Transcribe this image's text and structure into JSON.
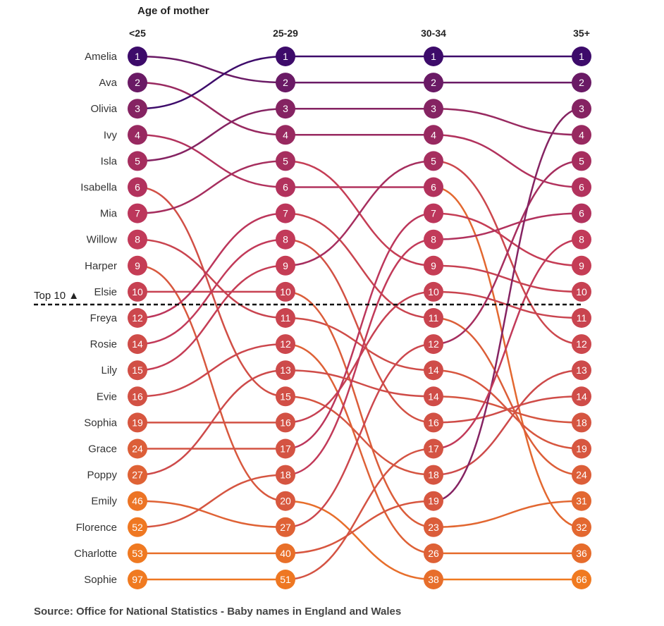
{
  "chart_data": {
    "type": "bump",
    "title": "Age of mother",
    "columns": [
      "<25",
      "25-29",
      "30-34",
      "35+"
    ],
    "top_n_label": "Top 10 ▲",
    "top_n": 10,
    "color_scale": {
      "low": "#3d0b6a",
      "mid": "#c0375b",
      "high": "#f07a20"
    },
    "series": [
      {
        "name": "Amelia",
        "ranks": [
          1,
          2,
          2,
          2
        ]
      },
      {
        "name": "Ava",
        "ranks": [
          2,
          4,
          4,
          6
        ]
      },
      {
        "name": "Olivia",
        "ranks": [
          3,
          1,
          1,
          1
        ]
      },
      {
        "name": "Ivy",
        "ranks": [
          4,
          6,
          6,
          32
        ]
      },
      {
        "name": "Isla",
        "ranks": [
          5,
          3,
          3,
          4
        ]
      },
      {
        "name": "Isabella",
        "ranks": [
          6,
          15,
          18,
          13
        ]
      },
      {
        "name": "Mia",
        "ranks": [
          7,
          5,
          9,
          10
        ]
      },
      {
        "name": "Willow",
        "ranks": [
          8,
          11,
          14,
          19
        ]
      },
      {
        "name": "Harper",
        "ranks": [
          9,
          20,
          38,
          66
        ]
      },
      {
        "name": "Elsie",
        "ranks": [
          10,
          10,
          23,
          31
        ]
      },
      {
        "name": "Freya",
        "ranks": [
          12,
          7,
          11,
          24
        ]
      },
      {
        "name": "Rosie",
        "ranks": [
          14,
          8,
          16,
          14
        ]
      },
      {
        "name": "Lily",
        "ranks": [
          15,
          9,
          5,
          12
        ]
      },
      {
        "name": "Evie",
        "ranks": [
          16,
          12,
          26,
          36
        ]
      },
      {
        "name": "Sophia",
        "ranks": [
          19,
          16,
          10,
          11
        ]
      },
      {
        "name": "Grace",
        "ranks": [
          24,
          17,
          7,
          9
        ]
      },
      {
        "name": "Poppy",
        "ranks": [
          27,
          13,
          14,
          18
        ]
      },
      {
        "name": "Emily",
        "ranks": [
          46,
          27,
          12,
          5
        ]
      },
      {
        "name": "Florence",
        "ranks": [
          52,
          18,
          8,
          6
        ]
      },
      {
        "name": "Charlotte",
        "ranks": [
          53,
          40,
          19,
          3
        ]
      },
      {
        "name": "Sophie",
        "ranks": [
          97,
          51,
          17,
          8
        ]
      }
    ]
  },
  "source": "Source: Office for National Statistics - Baby names in England and Wales"
}
